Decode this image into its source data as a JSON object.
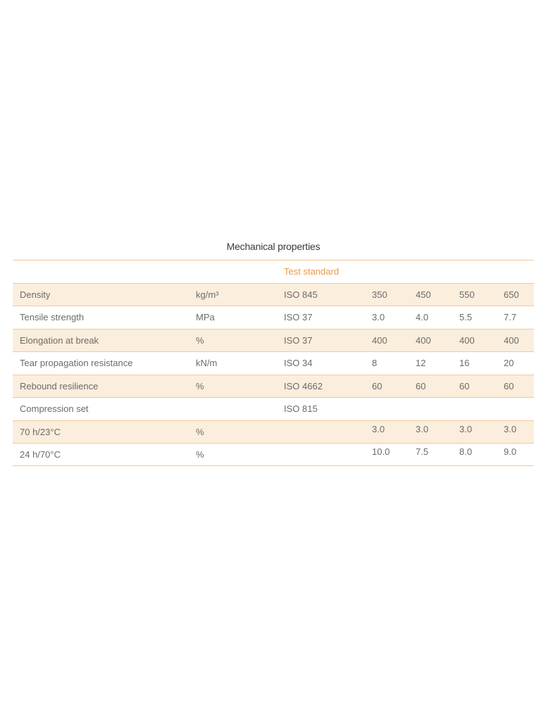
{
  "title": "Mechanical properties",
  "header": {
    "test_standard": "Test standard"
  },
  "rows": [
    {
      "property": "Density",
      "unit": "kg/m³",
      "standard": "ISO 845",
      "values": [
        "350",
        "450",
        "550",
        "650"
      ]
    },
    {
      "property": "Tensile strength",
      "unit": "MPa",
      "standard": "ISO 37",
      "values": [
        "3.0",
        "4.0",
        "5.5",
        "7.7"
      ]
    },
    {
      "property": "Elongation at break",
      "unit": "%",
      "standard": "ISO 37",
      "values": [
        "400",
        "400",
        "400",
        "400"
      ]
    },
    {
      "property": "Tear propagation resistance",
      "unit": "kN/m",
      "standard": "ISO 34",
      "values": [
        "8",
        "12",
        "16",
        "20"
      ]
    },
    {
      "property": "Rebound resilience",
      "unit": "%",
      "standard": "ISO 4662",
      "values": [
        "60",
        "60",
        "60",
        "60"
      ]
    },
    {
      "property": "Compression set",
      "unit": "",
      "standard": "ISO 815",
      "values": [
        "",
        "",
        "",
        ""
      ]
    },
    {
      "property": "70 h/23°C",
      "unit": "%",
      "standard": "",
      "values": [
        "3.0",
        "3.0",
        "3.0",
        "3.0"
      ]
    },
    {
      "property": "24 h/70°C",
      "unit": "%",
      "standard": "",
      "values": [
        "10.0",
        "7.5",
        "8.0",
        "9.0"
      ]
    }
  ],
  "colors": {
    "accent": "#e89a4a",
    "rule": "#f0c99a",
    "row_shade": "#fbeedd",
    "text": "#6b6b6b",
    "title": "#3a3a3a"
  }
}
